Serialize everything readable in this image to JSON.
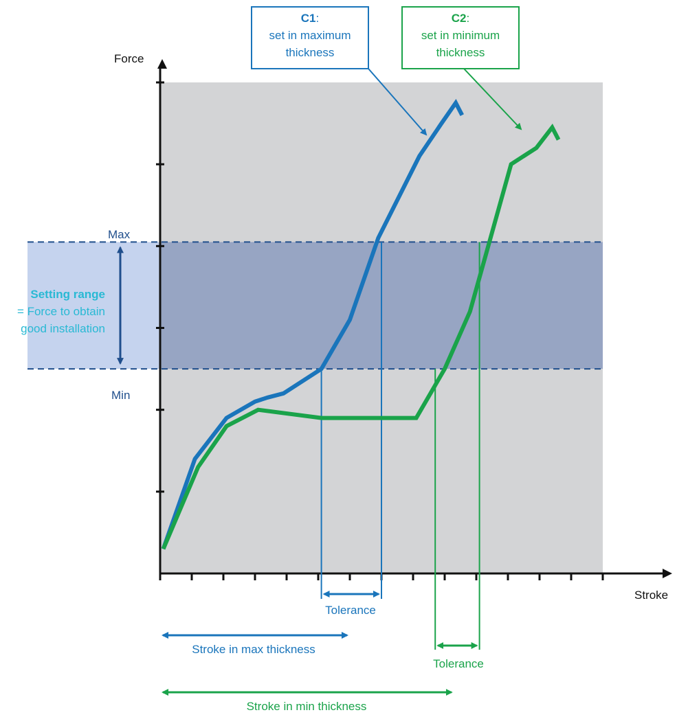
{
  "chart_data": {
    "type": "line",
    "xlabel": "Stroke",
    "ylabel": "Force",
    "xlim": [
      0,
      14
    ],
    "ylim": [
      0,
      6
    ],
    "grid": false,
    "series": [
      {
        "name": "C1",
        "color": "#1a75bb",
        "x": [
          0.1,
          1.1,
          2.1,
          3.0,
          3.4,
          3.9,
          5.1,
          6.0,
          6.9,
          8.2,
          8.9,
          9.35,
          9.55
        ],
        "y": [
          0.3,
          1.4,
          1.9,
          2.1,
          2.15,
          2.2,
          2.5,
          3.1,
          4.1,
          5.1,
          5.5,
          5.75,
          5.6
        ]
      },
      {
        "name": "C2",
        "color": "#1aa34a",
        "x": [
          0.1,
          1.2,
          2.1,
          3.1,
          5.1,
          8.1,
          9.0,
          9.8,
          11.1,
          11.9,
          12.4,
          12.6
        ],
        "y": [
          0.3,
          1.3,
          1.8,
          2.0,
          1.9,
          1.9,
          2.5,
          3.2,
          5.0,
          5.2,
          5.45,
          5.3
        ]
      }
    ],
    "setting_range": {
      "min": 2.5,
      "max": 4.05,
      "color": "#7f93bb",
      "band_color": "#c5d3ee"
    },
    "plot_background": "#d3d4d6",
    "marks": {
      "C1": {
        "min_x": 5.1,
        "max_x": 7.0
      },
      "C2": {
        "min_x": 8.7,
        "max_x": 10.1
      }
    },
    "strokes": {
      "max_thickness": {
        "from": 0,
        "to": 6.0
      },
      "min_thickness": {
        "from": 0,
        "to": 9.3
      }
    }
  },
  "labels": {
    "force": "Force",
    "stroke": "Stroke",
    "max": "Max",
    "min": "Min",
    "setting_range_title": "Setting range",
    "setting_range_line1": "= Force to obtain",
    "setting_range_line2": "good installation",
    "c1_title": "C1",
    "c1_colon": ":",
    "c1_line1": "set in maximum",
    "c1_line2": "thickness",
    "c2_title": "C2",
    "c2_colon": ":",
    "c2_line1": "set in minimum",
    "c2_line2": "thickness",
    "tolerance_c1": "Tolerance",
    "tolerance_c2": "Tolerance",
    "stroke_max": "Stroke in max thickness",
    "stroke_min": "Stroke in min thickness"
  },
  "colors": {
    "blue": "#1a75bb",
    "dark_blue": "#1f4e8c",
    "green": "#1aa34a",
    "cyan": "#29b9d4",
    "axis": "#111111"
  }
}
